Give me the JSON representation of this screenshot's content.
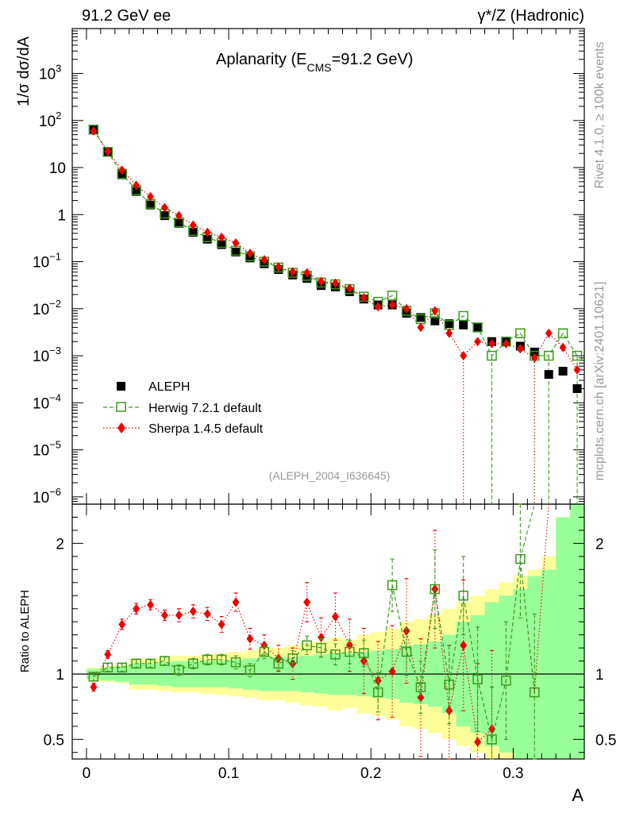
{
  "header": {
    "left": "91.2 GeV ee",
    "right": "γ*/Z (Hadronic)"
  },
  "side_labels": {
    "rivet": "Rivet 4.1.0, ≥ 100k events",
    "mcplots": "mcplots.cern.ch [arXiv:2401.10621]"
  },
  "chart_data": {
    "type": "scatter",
    "title": "Aplanarity (E_CMS=91.2 GeV)",
    "title_main": "Aplanarity (E",
    "title_sub": "CMS",
    "title_tail": "=91.2 GeV)",
    "analysis_id": "(ALEPH_2004_I636645)",
    "xlabel": "A",
    "ylabel": "1/σ  dσ/dA",
    "ratio_ylabel": "Ratio to ALEPH",
    "xlim": [
      -0.01,
      0.35
    ],
    "ylim_log": [
      7e-07,
      9000
    ],
    "ratio_ylim": [
      0.35,
      2.3
    ],
    "x_ticks": [
      0,
      0.1,
      0.2,
      0.3
    ],
    "x_tick_labels": [
      "0",
      "0.1",
      "0.2",
      "0.3"
    ],
    "y_ticks": [
      1e-06,
      1e-05,
      0.0001,
      0.001,
      0.01,
      0.1,
      1,
      10,
      100,
      1000
    ],
    "y_tick_labels": [
      {
        "base": "10",
        "exp": "−6"
      },
      {
        "base": "10",
        "exp": "−5"
      },
      {
        "base": "10",
        "exp": "−4"
      },
      {
        "base": "10",
        "exp": "−3"
      },
      {
        "base": "10",
        "exp": "−2"
      },
      {
        "base": "10",
        "exp": "−1"
      },
      {
        "base": "1",
        "exp": ""
      },
      {
        "base": "10",
        "exp": ""
      },
      {
        "base": "10",
        "exp": "2"
      },
      {
        "base": "10",
        "exp": "3"
      }
    ],
    "ratio_ticks": [
      0.5,
      1,
      2
    ],
    "ratio_tick_labels": [
      "0.5",
      "1",
      "2"
    ],
    "x": [
      0.005,
      0.015,
      0.025,
      0.035,
      0.045,
      0.055,
      0.065,
      0.075,
      0.085,
      0.095,
      0.105,
      0.115,
      0.125,
      0.135,
      0.145,
      0.155,
      0.165,
      0.175,
      0.185,
      0.195,
      0.205,
      0.215,
      0.225,
      0.235,
      0.245,
      0.255,
      0.265,
      0.275,
      0.285,
      0.295,
      0.305,
      0.315,
      0.325,
      0.335,
      0.345
    ],
    "series": [
      {
        "name": "ALEPH",
        "color": "#000000",
        "marker": "square-filled",
        "values": [
          65,
          21,
          7,
          3.1,
          1.6,
          0.95,
          0.65,
          0.42,
          0.3,
          0.23,
          0.16,
          0.12,
          0.09,
          0.068,
          0.052,
          0.044,
          0.031,
          0.029,
          0.023,
          0.016,
          0.012,
          0.012,
          0.008,
          0.0065,
          0.0055,
          0.0048,
          0.0045,
          0.004,
          0.002,
          0.002,
          0.0016,
          0.0012,
          0.0004,
          0.00047,
          0.0002
        ],
        "ratio": [
          1,
          1,
          1,
          1,
          1,
          1,
          1,
          1,
          1,
          1,
          1,
          1,
          1,
          1,
          1,
          1,
          1,
          1,
          1,
          1,
          1,
          1,
          1,
          1,
          1,
          1,
          1,
          1,
          1,
          1,
          1,
          1,
          1,
          1,
          1
        ]
      },
      {
        "name": "Herwig 7.2.1 default",
        "color": "#3a9a1a",
        "marker": "square-open",
        "line": "dashed",
        "values": [
          64,
          21.5,
          7.3,
          3.3,
          1.7,
          1.05,
          0.68,
          0.45,
          0.33,
          0.25,
          0.17,
          0.13,
          0.1,
          0.075,
          0.058,
          0.05,
          0.036,
          0.033,
          0.026,
          0.018,
          0.014,
          0.019,
          0.009,
          0.006,
          0.008,
          0.0045,
          0.007,
          0.004,
          0.001,
          0.002,
          0.003,
          0.001,
          0.001,
          0.003,
          0.001
        ],
        "ratio": [
          0.98,
          1.05,
          1.05,
          1.08,
          1.08,
          1.1,
          1.03,
          1.08,
          1.11,
          1.11,
          1.09,
          1.03,
          1.17,
          1.08,
          1.12,
          1.22,
          1.2,
          1.15,
          1.17,
          1.16,
          0.86,
          1.68,
          1.17,
          0.9,
          1.65,
          0.92,
          1.6,
          0.96,
          0.5,
          0.95,
          1.88,
          0.86
        ],
        "ratio_err": [
          0.03,
          0.03,
          0.03,
          0.03,
          0.03,
          0.03,
          0.04,
          0.04,
          0.04,
          0.04,
          0.05,
          0.05,
          0.05,
          0.05,
          0.06,
          0.07,
          0.07,
          0.08,
          0.09,
          0.1,
          0.15,
          0.2,
          0.18,
          0.2,
          0.3,
          0.3,
          0.3,
          0.4,
          0.4,
          0.45,
          0.45,
          0.6
        ]
      },
      {
        "name": "Sherpa 1.4.5 default",
        "color": "#ee0000",
        "marker": "diamond-filled",
        "line": "dotted",
        "values": [
          60,
          22,
          8.8,
          4.2,
          2.4,
          1.4,
          0.95,
          0.6,
          0.42,
          0.33,
          0.25,
          0.15,
          0.11,
          0.077,
          0.061,
          0.058,
          0.038,
          0.035,
          0.027,
          0.017,
          0.011,
          0.012,
          0.01,
          0.004,
          0.009,
          0.003,
          0.001,
          0.002,
          0.0018,
          0.0018,
          0.0014,
          0.0009,
          0.003,
          0.0015,
          0.0005
        ],
        "ratio": [
          0.9,
          1.15,
          1.38,
          1.5,
          1.53,
          1.45,
          1.45,
          1.48,
          1.46,
          1.38,
          1.55,
          1.27,
          1.22,
          1.12,
          1.08,
          1.55,
          1.28,
          1.44,
          1.22,
          1.1,
          0.95,
          1.02,
          1.33,
          0.82,
          1.65,
          0.72,
          1.22,
          0.48,
          0.58
        ],
        "ratio_err": [
          0.03,
          0.03,
          0.04,
          0.04,
          0.04,
          0.04,
          0.05,
          0.05,
          0.05,
          0.06,
          0.07,
          0.08,
          0.08,
          0.1,
          0.12,
          0.15,
          0.15,
          0.18,
          0.2,
          0.25,
          0.3,
          0.35,
          0.4,
          0.45,
          0.45,
          0.5,
          0.5,
          0.6,
          0.6
        ]
      }
    ],
    "bands": {
      "inner_color": "#99ff99",
      "outer_color": "#ffff99",
      "inner": [
        0.04,
        0.05,
        0.06,
        0.08,
        0.08,
        0.09,
        0.1,
        0.1,
        0.1,
        0.1,
        0.11,
        0.12,
        0.13,
        0.13,
        0.13,
        0.14,
        0.15,
        0.16,
        0.16,
        0.17,
        0.18,
        0.19,
        0.22,
        0.23,
        0.25,
        0.3,
        0.4,
        0.45,
        0.55,
        0.6,
        0.65,
        0.75,
        0.8,
        1.2,
        1.4
      ],
      "outer": [
        0.05,
        0.06,
        0.07,
        0.12,
        0.12,
        0.13,
        0.14,
        0.14,
        0.15,
        0.16,
        0.17,
        0.18,
        0.2,
        0.2,
        0.22,
        0.24,
        0.25,
        0.28,
        0.26,
        0.3,
        0.32,
        0.35,
        0.4,
        0.42,
        0.45,
        0.5,
        0.55,
        0.6,
        0.65,
        0.7,
        0.75,
        0.8,
        0.9,
        1.2,
        1.4
      ]
    }
  }
}
